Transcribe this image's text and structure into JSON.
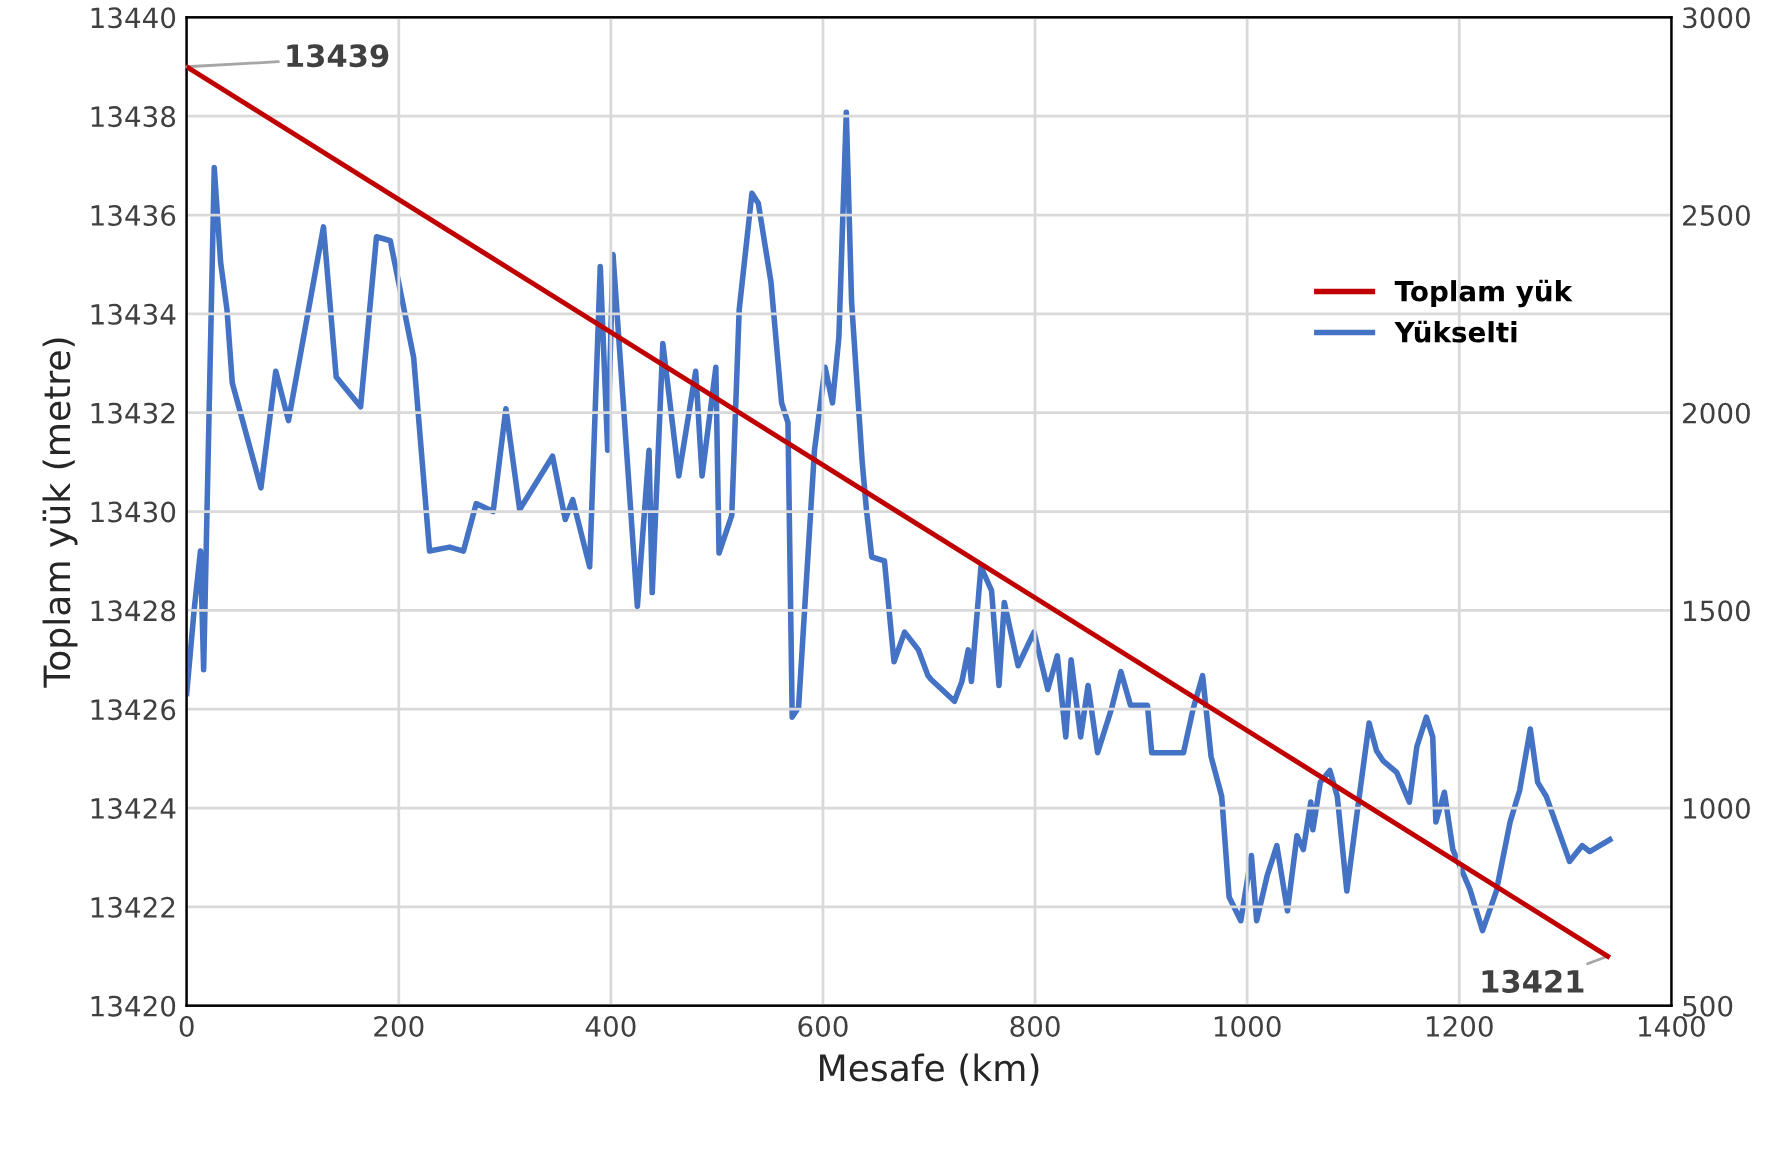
{
  "chart_data": {
    "type": "line",
    "xlabel": "Mesafe (km)",
    "ylabel": "Toplam yük (metre)",
    "xlim": [
      0,
      1400
    ],
    "xticks": [
      0,
      200,
      400,
      600,
      800,
      1000,
      1200,
      1400
    ],
    "ylim": [
      13420,
      13440
    ],
    "yticks": [
      13420,
      13422,
      13424,
      13426,
      13428,
      13430,
      13432,
      13434,
      13436,
      13438,
      13440
    ],
    "y2lim": [
      500,
      3000
    ],
    "y2ticks": [
      500,
      1000,
      1500,
      2000,
      2500,
      3000
    ],
    "grid": true,
    "legend": "right",
    "marker": "none",
    "line_style": "solid",
    "annotations": [
      {
        "text": "13439",
        "x": 0,
        "y": 13439
      },
      {
        "text": "13421",
        "x": 1340,
        "y": 13421
      }
    ],
    "series": [
      {
        "name": "Toplam yük",
        "color": "#c00000",
        "x": [
          0,
          1340
        ],
        "values": [
          13439,
          13421
        ]
      },
      {
        "name": "Yükselti",
        "color": "#4472c4",
        "axis": "y2",
        "x": [
          0,
          7,
          13,
          16,
          26,
          32,
          38,
          43,
          70,
          84,
          96,
          129,
          141,
          164,
          179,
          192,
          214,
          229,
          248,
          261,
          273,
          289,
          301,
          314,
          345,
          357,
          364,
          380,
          390,
          397,
          402,
          425,
          436,
          439,
          449,
          464,
          480,
          486,
          499,
          502,
          514,
          521,
          533,
          539,
          551,
          561,
          567,
          571,
          577,
          592,
          602,
          609,
          615,
          622,
          627,
          637,
          641,
          646,
          658,
          667,
          677,
          690,
          699,
          702,
          724,
          731,
          737,
          740,
          749,
          759,
          766,
          771,
          784,
          799,
          812,
          821,
          829,
          834,
          843,
          850,
          859,
          872,
          881,
          890,
          906,
          910,
          940,
          949,
          958,
          966,
          976,
          983,
          994,
          1004,
          1009,
          1019,
          1028,
          1038,
          1047,
          1053,
          1060,
          1062,
          1069,
          1078,
          1085,
          1094,
          1104,
          1115,
          1122,
          1128,
          1141,
          1153,
          1160,
          1169,
          1175,
          1178,
          1186,
          1194,
          1210,
          1222,
          1235,
          1248,
          1257,
          1267,
          1274,
          1282,
          1304,
          1316,
          1323,
          1342
        ],
        "values": [
          1290,
          1500,
          1650,
          1350,
          2620,
          2380,
          2260,
          2075,
          1810,
          2105,
          1980,
          2470,
          2090,
          2015,
          2445,
          2435,
          2140,
          1650,
          1660,
          1650,
          1770,
          1750,
          2010,
          1755,
          1890,
          1730,
          1780,
          1610,
          2370,
          1905,
          2400,
          1510,
          1905,
          1545,
          2175,
          1840,
          2105,
          1840,
          2115,
          1645,
          1740,
          2260,
          2555,
          2530,
          2330,
          2025,
          1975,
          1230,
          1255,
          1905,
          2115,
          2025,
          2190,
          2760,
          2280,
          1875,
          1755,
          1635,
          1625,
          1370,
          1445,
          1400,
          1335,
          1325,
          1270,
          1320,
          1400,
          1320,
          1610,
          1550,
          1310,
          1520,
          1360,
          1445,
          1300,
          1385,
          1180,
          1375,
          1180,
          1310,
          1140,
          1250,
          1345,
          1260,
          1260,
          1140,
          1140,
          1250,
          1335,
          1130,
          1030,
          775,
          715,
          880,
          715,
          830,
          905,
          740,
          930,
          895,
          1015,
          945,
          1065,
          1095,
          1030,
          790,
          995,
          1215,
          1145,
          1120,
          1090,
          1015,
          1155,
          1230,
          1180,
          965,
          1040,
          895,
          795,
          690,
          790,
          965,
          1045,
          1200,
          1065,
          1030,
          865,
          905,
          890,
          920
        ]
      }
    ]
  }
}
